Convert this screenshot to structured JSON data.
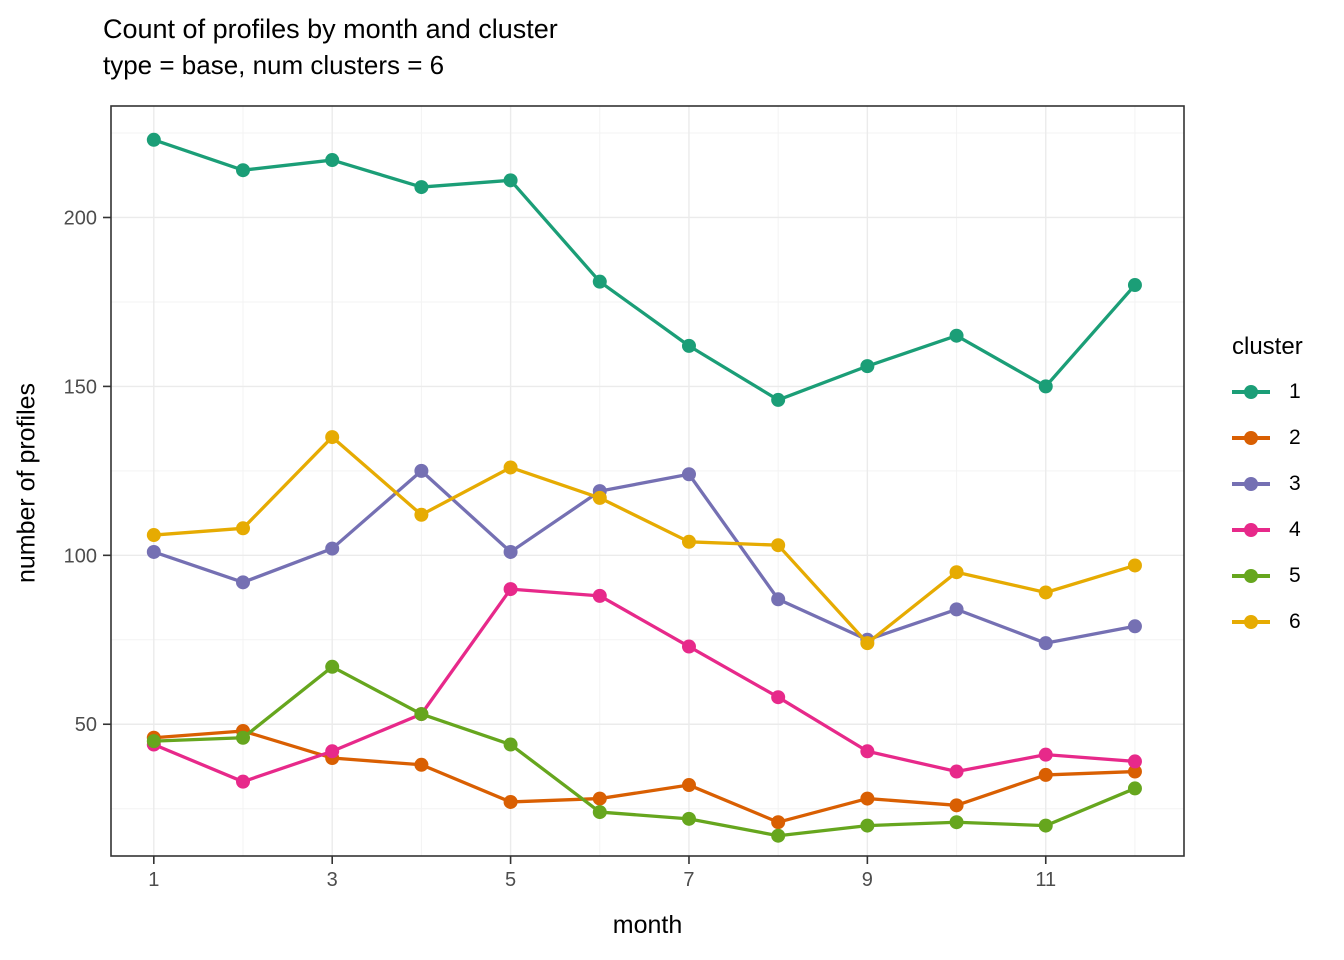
{
  "header": {
    "title": "Count of profiles by month and cluster",
    "subtitle": "type = base, num clusters = 6"
  },
  "chart_data": {
    "type": "line",
    "title": "Count of profiles by month and cluster",
    "subtitle": "type = base, num clusters = 6",
    "xlabel": "month",
    "ylabel": "number of profiles",
    "x": [
      1,
      2,
      3,
      4,
      5,
      6,
      7,
      8,
      9,
      10,
      11,
      12
    ],
    "x_ticks": [
      1,
      3,
      5,
      7,
      9,
      11
    ],
    "x_minor": [
      2,
      4,
      6,
      8,
      10,
      12
    ],
    "y_ticks": [
      50,
      100,
      150,
      200
    ],
    "y_minor": [
      25,
      75,
      125,
      175,
      225
    ],
    "xlim": [
      0.52,
      12.55
    ],
    "ylim": [
      11,
      233
    ],
    "grid": true,
    "legend": {
      "title": "cluster",
      "position": "right"
    },
    "series": [
      {
        "name": "1",
        "color": "#1B9E77",
        "values": [
          223,
          214,
          217,
          209,
          211,
          181,
          162,
          146,
          156,
          165,
          150,
          180
        ]
      },
      {
        "name": "2",
        "color": "#D95F02",
        "values": [
          46,
          48,
          40,
          38,
          27,
          28,
          32,
          21,
          28,
          26,
          35,
          36
        ]
      },
      {
        "name": "3",
        "color": "#7570B3",
        "values": [
          101,
          92,
          102,
          125,
          101,
          119,
          124,
          87,
          75,
          84,
          74,
          79
        ]
      },
      {
        "name": "4",
        "color": "#E7298A",
        "values": [
          44,
          33,
          42,
          53,
          90,
          88,
          73,
          58,
          42,
          36,
          41,
          39
        ]
      },
      {
        "name": "5",
        "color": "#66A61E",
        "values": [
          45,
          46,
          67,
          53,
          44,
          24,
          22,
          17,
          20,
          21,
          20,
          31
        ]
      },
      {
        "name": "6",
        "color": "#E6AB02",
        "values": [
          106,
          108,
          135,
          112,
          126,
          117,
          104,
          103,
          74,
          95,
          89,
          97
        ]
      }
    ]
  },
  "colors": {
    "background": "#FFFFFF",
    "grid_major": "#EBEBEB",
    "grid_minor": "#F3F3F3",
    "panel_border": "#333333",
    "tick_mark": "#333333",
    "tick_label": "#4D4D4D",
    "text": "#000000"
  }
}
